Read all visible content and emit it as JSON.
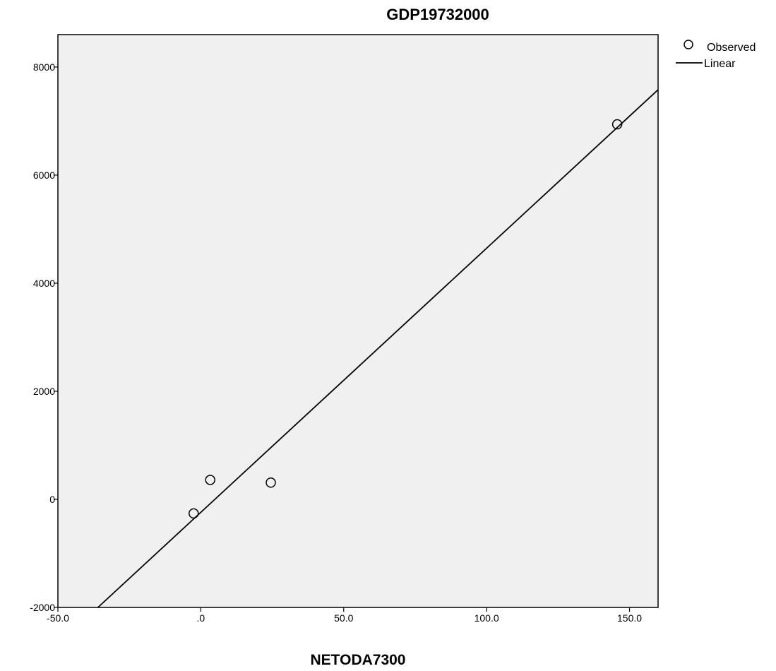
{
  "chart_data": {
    "type": "scatter",
    "title": "GDP19732000",
    "xlabel": "NETODA7300",
    "ylabel": "",
    "xlim": [
      -50,
      160
    ],
    "ylim": [
      -2000,
      8600
    ],
    "x_ticks": [
      -50,
      0,
      50,
      100,
      150
    ],
    "x_tick_labels": [
      "-50.0",
      ".0",
      "50.0",
      "100.0",
      "150.0"
    ],
    "y_ticks": [
      -2000,
      0,
      2000,
      4000,
      6000,
      8000
    ],
    "y_tick_labels": [
      "-2000",
      "0",
      "2000",
      "4000",
      "6000",
      "8000"
    ],
    "grid": false,
    "legend_position": "top-right, outside plot",
    "series": [
      {
        "name": "Observed",
        "type": "scatter",
        "marker": "open-circle",
        "points": [
          {
            "x": -2.5,
            "y": -260
          },
          {
            "x": 3.3,
            "y": 360
          },
          {
            "x": 24.5,
            "y": 310
          },
          {
            "x": 145.7,
            "y": 6940
          }
        ]
      },
      {
        "name": "Linear",
        "type": "line",
        "points": [
          {
            "x": -36,
            "y": -2000
          },
          {
            "x": 160,
            "y": 7580
          }
        ]
      }
    ],
    "colors": {
      "plot_background": "#f0f0f0",
      "marks": "#000000"
    }
  }
}
